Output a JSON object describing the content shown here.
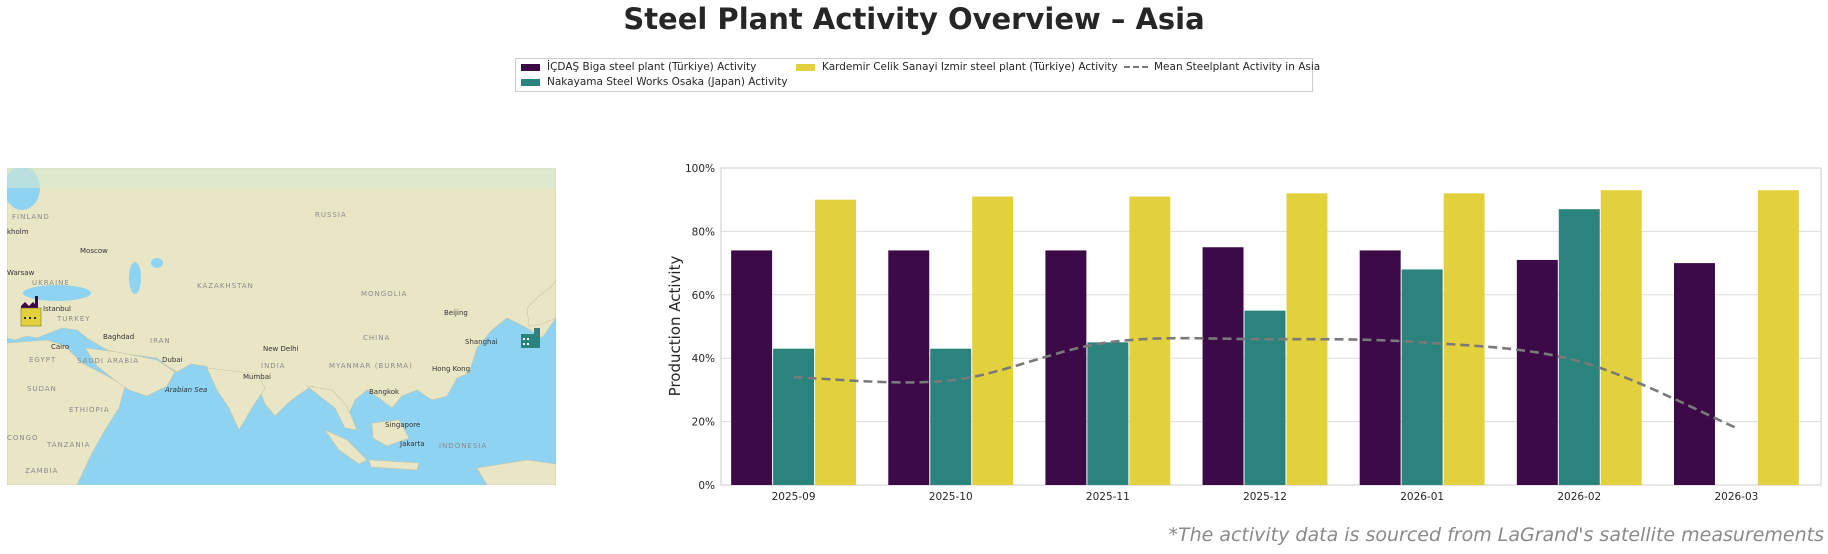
{
  "title": "Steel Plant Activity Overview – Asia",
  "footnote": "*The activity data is sourced from LaGrand's satellite measurements",
  "legend": {
    "items": [
      {
        "label": "İÇDAŞ Biga steel plant (Türkiye) Activity",
        "color": "#3b0a47"
      },
      {
        "label": "Nakayama Steel Works Osaka (Japan) Activity",
        "color": "#2a837c"
      },
      {
        "label": "Kardemir Celik Sanayi Izmir steel plant (Türkiye) Activity",
        "color": "#e2d13d"
      },
      {
        "label": "Mean Steelplant Activity in Asia",
        "color": "#7a7a7a"
      }
    ]
  },
  "map": {
    "labels": {
      "finland": "FINLAND",
      "russia": "RUSSIA",
      "stockholm": "kholm",
      "moscow": "Moscow",
      "warsaw": "Warsaw",
      "ukraine": "UKRAINE",
      "kazakhstan": "KAZAKHSTAN",
      "mongolia": "MONGOLIA",
      "beijing": "Beijing",
      "istanbul": "Istanbul",
      "turkey": "TURKEY",
      "baghdad": "Baghdad",
      "iran": "IRAN",
      "china": "CHINA",
      "shanghai": "Shanghai",
      "cairo": "Cairo",
      "egypt": "EGYPT",
      "saudi": "SAUDI ARABIA",
      "dubai": "Dubai",
      "newdelhi": "New Delhi",
      "india": "INDIA",
      "myanmar": "MYANMAR (BURMA)",
      "hongkong": "Hong Kong",
      "mumbai": "Mumbai",
      "sudan": "SUDAN",
      "arabiansea": "Arabian Sea",
      "bangkok": "Bangkok",
      "ethiopia": "ETHIOPIA",
      "singapore": "Singapore",
      "congo": "CONGO",
      "tanzania": "TANZANIA",
      "jakarta": "Jakarta",
      "indonesia": "INDONESIA",
      "zambia": "ZAMBIA"
    }
  },
  "chart_data": {
    "type": "bar",
    "categories": [
      "2025-09",
      "2025-10",
      "2025-11",
      "2025-12",
      "2026-01",
      "2026-02",
      "2026-03"
    ],
    "series": [
      {
        "name": "İÇDAŞ Biga steel plant (Türkiye) Activity",
        "values": [
          74,
          74,
          74,
          75,
          74,
          71,
          70
        ]
      },
      {
        "name": "Nakayama Steel Works Osaka (Japan) Activity",
        "values": [
          43,
          43,
          45,
          55,
          68,
          87,
          null
        ]
      },
      {
        "name": "Kardemir Celik Sanayi Izmir steel plant (Türkiye) Activity",
        "values": [
          90,
          91,
          91,
          92,
          92,
          93,
          93
        ]
      },
      {
        "name": "Mean Steelplant Activity in Asia",
        "type": "line",
        "style": "dashed",
        "values": [
          34,
          33,
          45,
          46,
          45,
          39,
          18
        ]
      }
    ],
    "ylabel": "Production Activity",
    "xlabel": "",
    "ylim": [
      0,
      100
    ],
    "yticks": [
      "0%",
      "20%",
      "40%",
      "60%",
      "80%",
      "100%"
    ],
    "grid": "horizontal",
    "legend_position": "top-center"
  }
}
